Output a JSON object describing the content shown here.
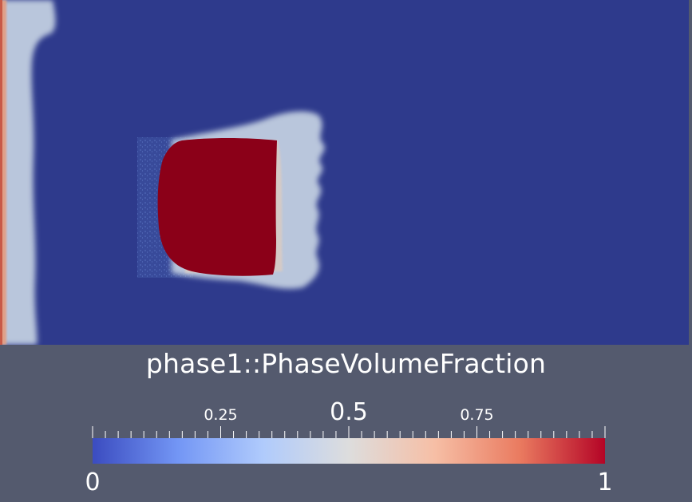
{
  "legend": {
    "title": "phase1::PhaseVolumeFraction",
    "range": [
      0,
      1
    ],
    "labels": [
      {
        "value": 0,
        "text": "0",
        "size": "range"
      },
      {
        "value": 0.25,
        "text": "0.25",
        "size": "minor"
      },
      {
        "value": 0.5,
        "text": "0.5",
        "size": "major"
      },
      {
        "value": 0.75,
        "text": "0.75",
        "size": "minor"
      },
      {
        "value": 1,
        "text": "1",
        "size": "range"
      }
    ],
    "tick_count": 41,
    "colormap": [
      "#3b4cc0",
      "#7396f5",
      "#b0cbfc",
      "#dddddd",
      "#f6bfa6",
      "#ea7b60",
      "#b40426"
    ]
  },
  "scene": {
    "background_color": "#2e3a8c",
    "droplet_color": "#8b0018",
    "halo_color": "#b9c6dc"
  }
}
